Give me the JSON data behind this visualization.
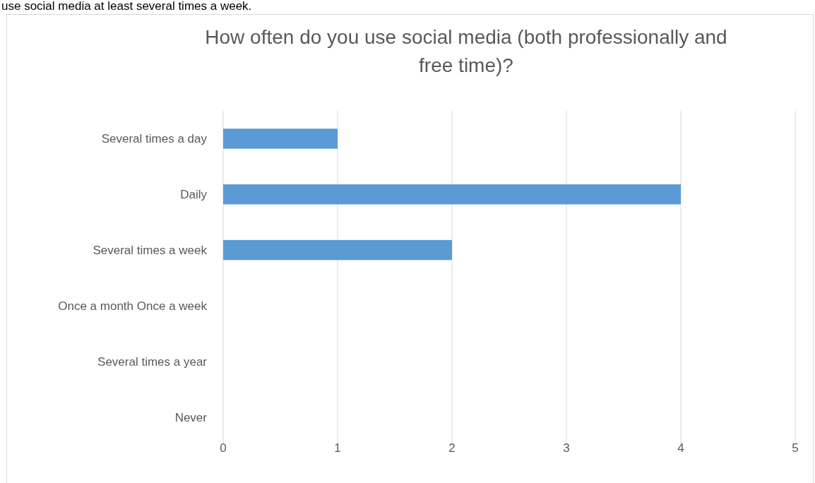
{
  "chart_data": {
    "type": "bar",
    "orientation": "horizontal",
    "title": "How often do you use social media (both professionally and free time)?",
    "categories": [
      "Several times a day",
      "Daily",
      "Several times a week",
      "Once a month Once a week",
      "Several times a year",
      "Never"
    ],
    "values": [
      1,
      4,
      2,
      0,
      0,
      0
    ],
    "color": "#5b9bd5",
    "xlim": [
      0,
      5
    ],
    "xticks": [
      0,
      1,
      2,
      3,
      4,
      5
    ],
    "grid": "x",
    "annotations": [
      "use social media at least several times a week."
    ]
  }
}
